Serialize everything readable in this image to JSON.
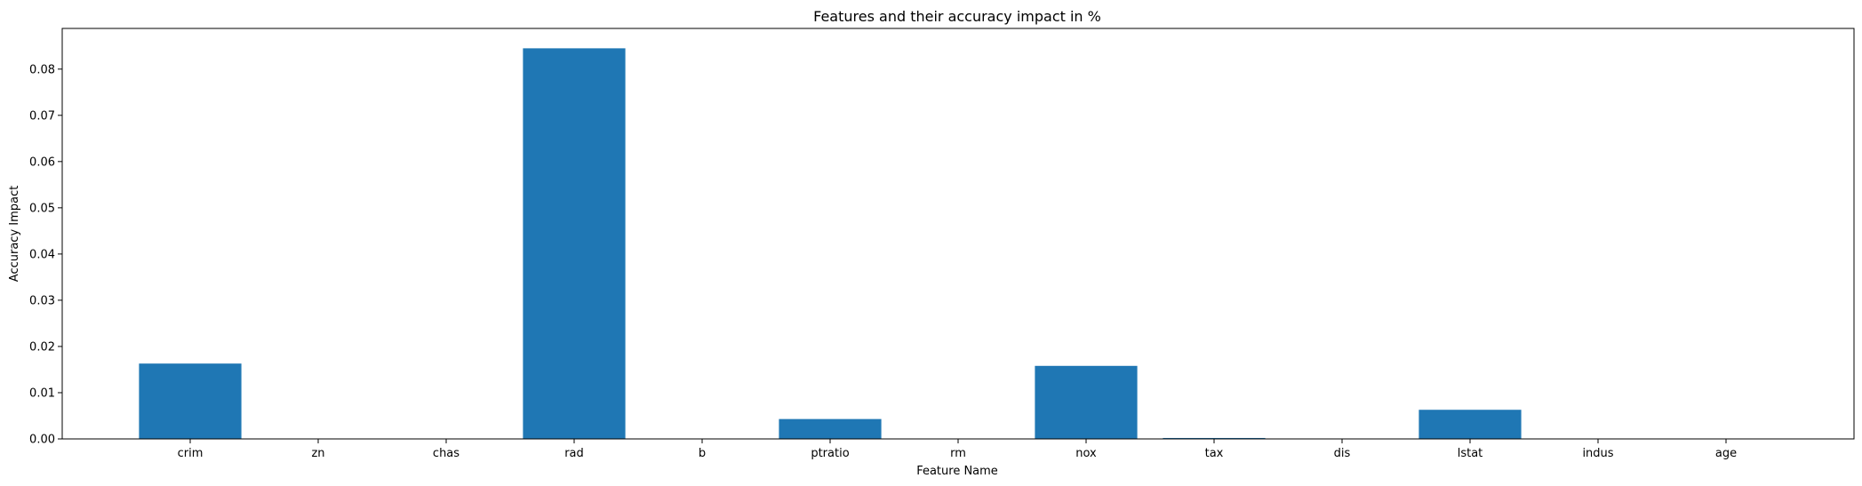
{
  "chart_data": {
    "type": "bar",
    "title": "Features and their accuracy impact in %",
    "xlabel": "Feature Name",
    "ylabel": "Accuracy Impact",
    "categories": [
      "crim",
      "zn",
      "chas",
      "rad",
      "b",
      "ptratio",
      "rm",
      "nox",
      "tax",
      "dis",
      "lstat",
      "indus",
      "age"
    ],
    "values": [
      0.0163,
      0.0,
      0.0,
      0.0845,
      0.0,
      0.0043,
      0.0,
      0.0158,
      0.0002,
      0.0,
      0.0063,
      0.0,
      0.0
    ],
    "ylim": [
      0,
      0.0888
    ],
    "yticks": [
      0.0,
      0.01,
      0.02,
      0.03,
      0.04,
      0.05,
      0.06,
      0.07,
      0.08
    ],
    "ytick_labels": [
      "0.00",
      "0.01",
      "0.02",
      "0.03",
      "0.04",
      "0.05",
      "0.06",
      "0.07",
      "0.08"
    ],
    "bar_color": "#1f77b4",
    "grid": false,
    "legend": "none"
  }
}
